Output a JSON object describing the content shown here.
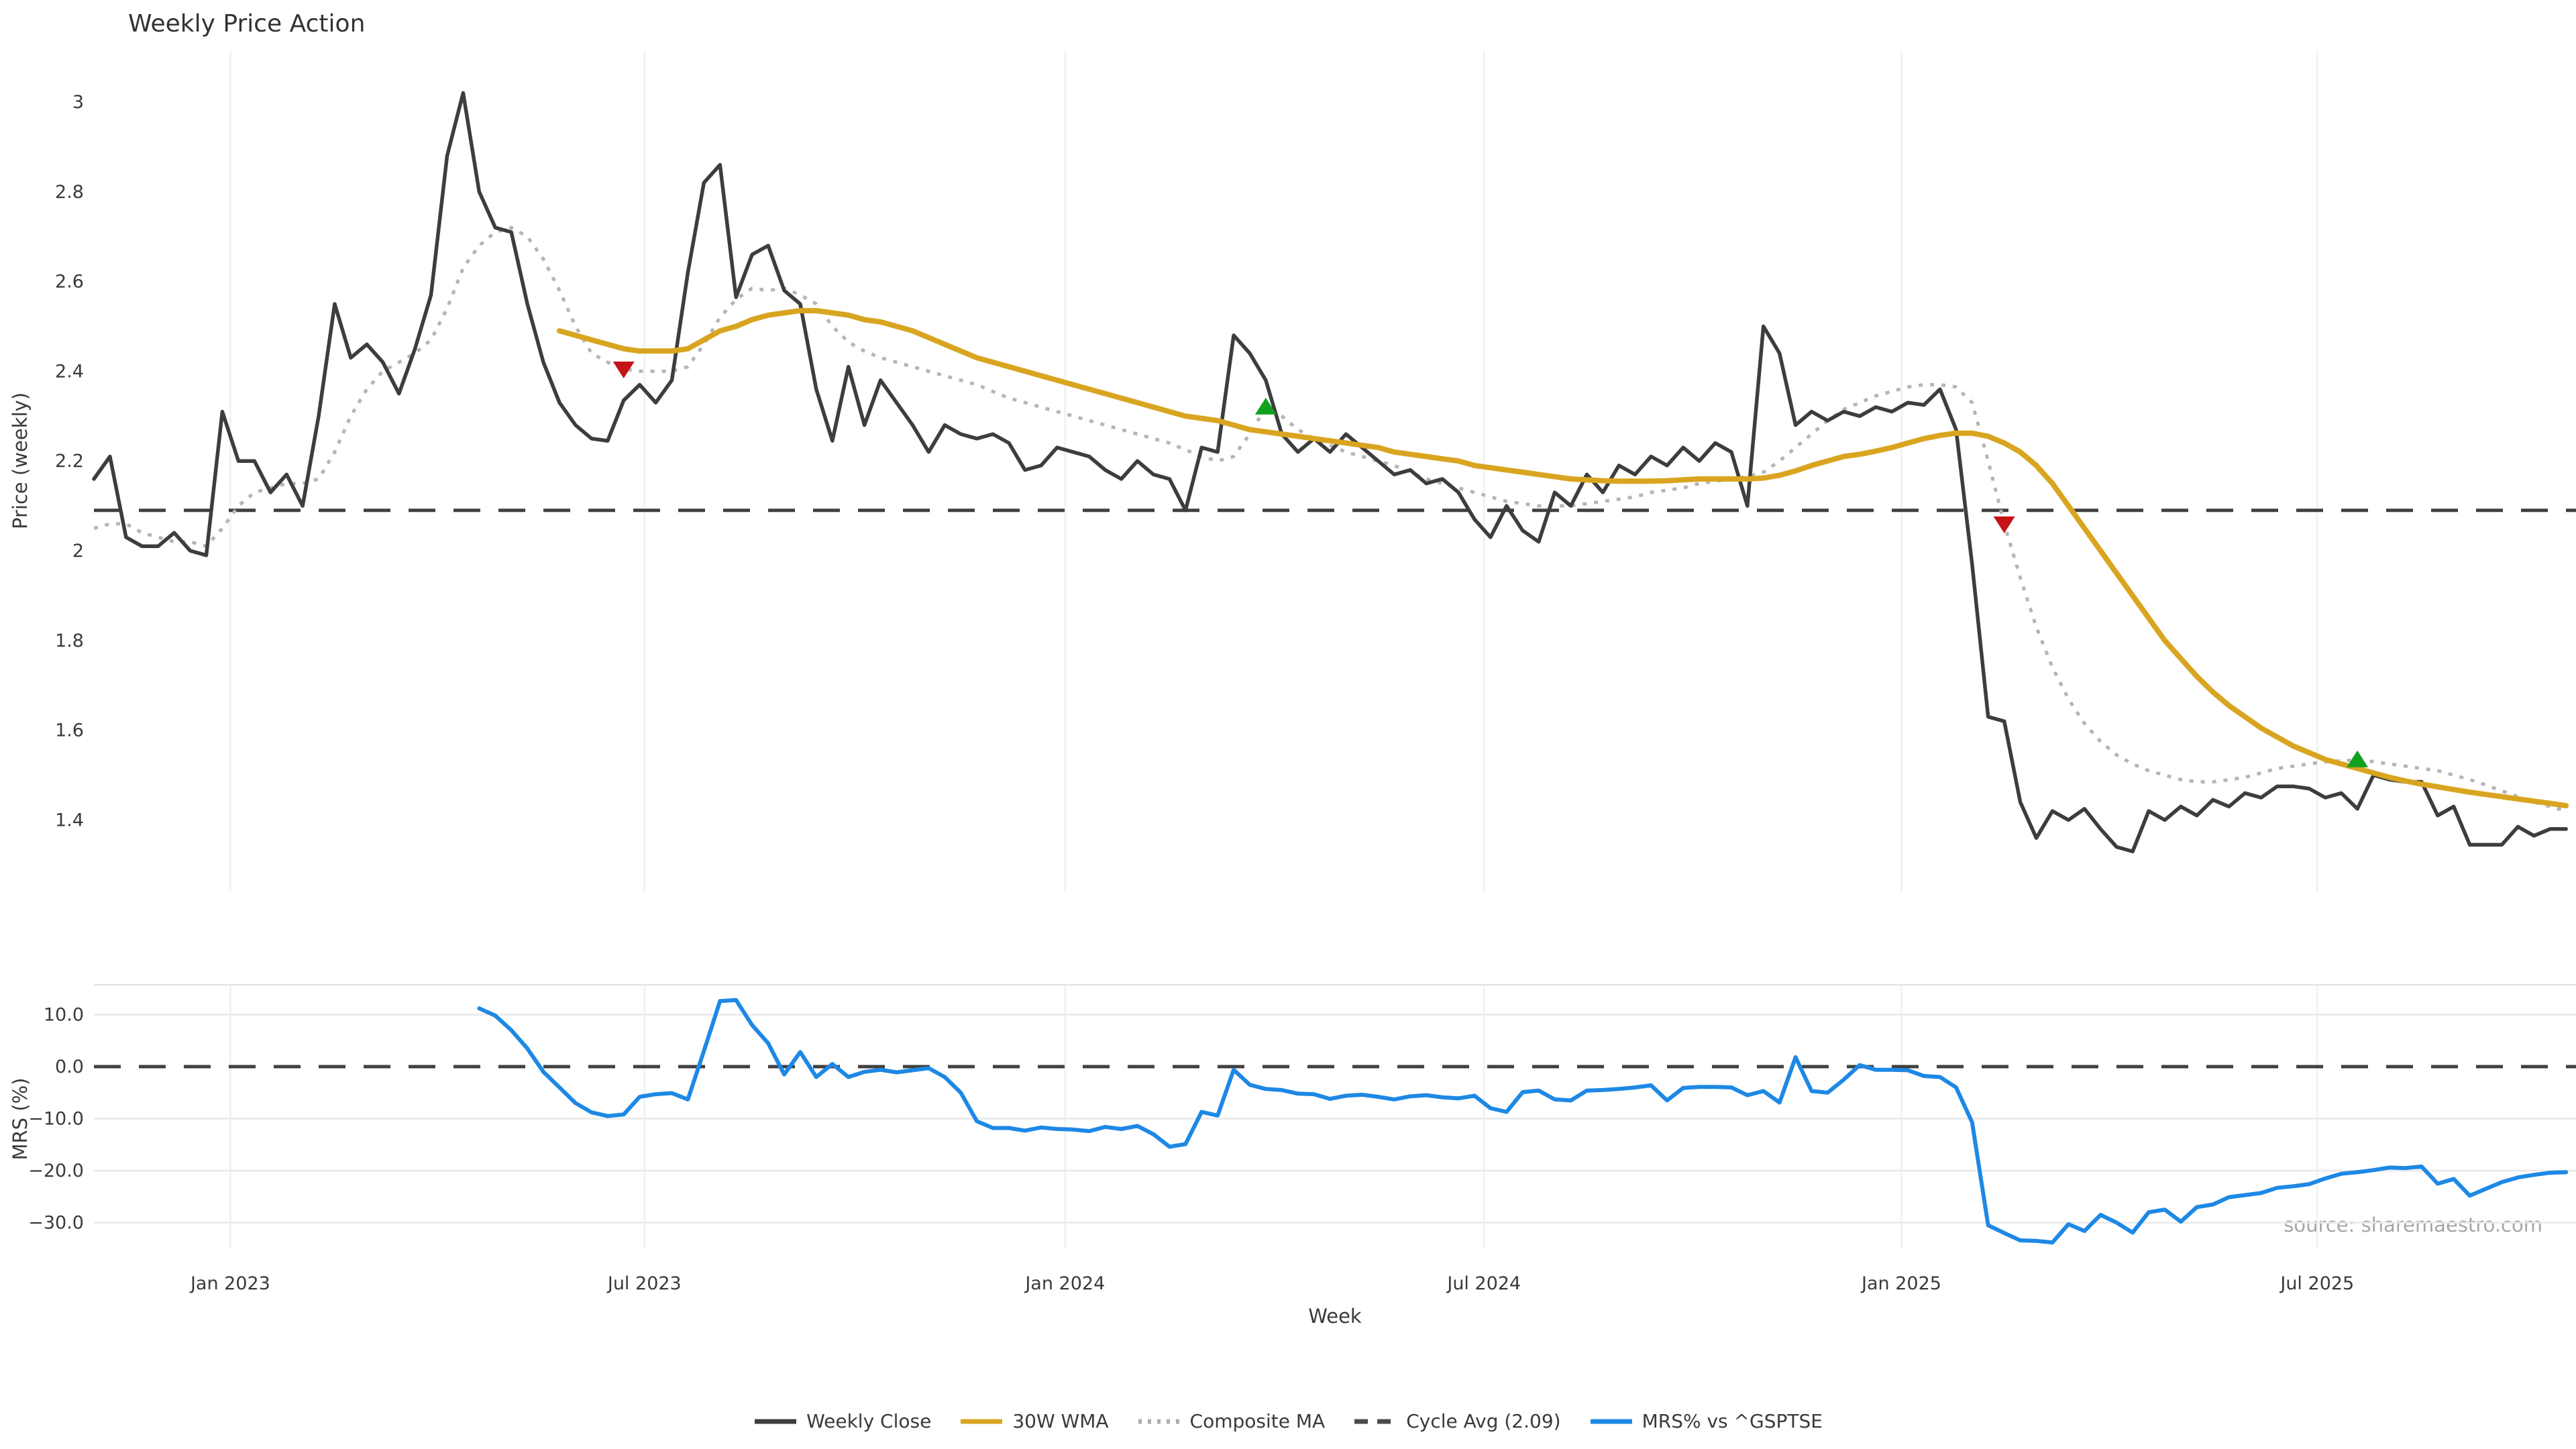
{
  "title": "Weekly Price Action",
  "xlabel": "Week",
  "source": "source: sharemaestro.com",
  "colors": {
    "close": "#3d3d3d",
    "wma": "#d9a521",
    "composite": "#b5b5b5",
    "cycle": "#404040",
    "mrs": "#1e88e5",
    "sell": "#c41217",
    "buy": "#12a01f",
    "grid_v": "#eef1f5",
    "grid_h": "#e9e9e9",
    "panel_border": "#e2e5e8",
    "text": "#3a3a3a",
    "muted": "#a6a6a6"
  },
  "legend": [
    {
      "label": "Weekly Close",
      "color": "#3d3d3d",
      "style": "solid"
    },
    {
      "label": "30W WMA",
      "color": "#d9a521",
      "style": "solid"
    },
    {
      "label": "Composite MA",
      "color": "#adadad",
      "style": "dotted"
    },
    {
      "label": "Cycle Avg (2.09)",
      "color": "#4a4a4a",
      "style": "dashed"
    },
    {
      "label": "MRS% vs ^GSPTSE",
      "color": "#1e88e5",
      "style": "solid"
    }
  ],
  "chart_data": {
    "type": "line",
    "x_unit": "week_index",
    "xlabel": "Week",
    "xticks": [
      {
        "label": "Jan 2023",
        "week": 8.5
      },
      {
        "label": "Jul 2023",
        "week": 34.3
      },
      {
        "label": "Jan 2024",
        "week": 60.5
      },
      {
        "label": "Jul 2024",
        "week": 86.6
      },
      {
        "label": "Jan 2025",
        "week": 112.6
      },
      {
        "label": "Jul 2025",
        "week": 138.5
      }
    ],
    "price_panel": {
      "ylabel": "Price (weekly)",
      "ylim": [
        1.23,
        3.13
      ],
      "grid": "vertical-only",
      "cycle_avg": 2.09,
      "yticks": [
        {
          "value": 3,
          "label": "3"
        },
        {
          "value": 2.8,
          "label": "2.8"
        },
        {
          "value": 2.6,
          "label": "2.6"
        },
        {
          "value": 2.4,
          "label": "2.4"
        },
        {
          "value": 2.2,
          "label": "2.2"
        },
        {
          "value": 2,
          "label": "2"
        },
        {
          "value": 1.8,
          "label": "1.8"
        },
        {
          "value": 1.6,
          "label": "1.6"
        },
        {
          "value": 1.4,
          "label": "1.4"
        }
      ],
      "series": [
        {
          "name": "Weekly Close",
          "start_week": 0,
          "values": [
            2.16,
            2.21,
            2.03,
            2.01,
            2.01,
            2.04,
            2.0,
            1.99,
            2.31,
            2.2,
            2.2,
            2.13,
            2.17,
            2.1,
            2.3,
            2.55,
            2.43,
            2.46,
            2.42,
            2.35,
            2.45,
            2.57,
            2.88,
            3.02,
            2.8,
            2.72,
            2.71,
            2.55,
            2.42,
            2.33,
            2.28,
            2.25,
            2.245,
            2.335,
            2.37,
            2.33,
            2.38,
            2.62,
            2.82,
            2.86,
            2.565,
            2.66,
            2.68,
            2.58,
            2.55,
            2.36,
            2.245,
            2.41,
            2.28,
            2.38,
            2.33,
            2.28,
            2.22,
            2.28,
            2.26,
            2.25,
            2.26,
            2.24,
            2.18,
            2.19,
            2.23,
            2.22,
            2.21,
            2.18,
            2.16,
            2.2,
            2.17,
            2.16,
            2.09,
            2.23,
            2.22,
            2.48,
            2.44,
            2.38,
            2.26,
            2.22,
            2.25,
            2.22,
            2.26,
            2.23,
            2.2,
            2.17,
            2.18,
            2.15,
            2.16,
            2.13,
            2.07,
            2.03,
            2.1,
            2.045,
            2.02,
            2.13,
            2.1,
            2.17,
            2.13,
            2.19,
            2.17,
            2.21,
            2.19,
            2.23,
            2.2,
            2.24,
            2.22,
            2.1,
            2.5,
            2.44,
            2.28,
            2.31,
            2.29,
            2.31,
            2.3,
            2.32,
            2.31,
            2.33,
            2.325,
            2.36,
            2.27,
            1.97,
            1.63,
            1.62,
            1.44,
            1.36,
            1.42,
            1.4,
            1.425,
            1.38,
            1.34,
            1.33,
            1.42,
            1.4,
            1.43,
            1.41,
            1.445,
            1.43,
            1.46,
            1.45,
            1.475,
            1.475,
            1.47,
            1.45,
            1.46,
            1.425,
            1.5,
            1.49,
            1.485,
            1.485,
            1.41,
            1.43,
            1.345,
            1.345,
            1.345,
            1.385,
            1.365,
            1.38,
            1.38
          ]
        },
        {
          "name": "30W WMA",
          "start_week": 29,
          "values": [
            2.49,
            2.48,
            2.47,
            2.46,
            2.45,
            2.445,
            2.445,
            2.445,
            2.45,
            2.47,
            2.49,
            2.5,
            2.515,
            2.525,
            2.53,
            2.535,
            2.535,
            2.53,
            2.525,
            2.515,
            2.51,
            2.5,
            2.49,
            2.475,
            2.46,
            2.445,
            2.43,
            2.42,
            2.41,
            2.4,
            2.39,
            2.38,
            2.37,
            2.36,
            2.35,
            2.34,
            2.33,
            2.32,
            2.31,
            2.3,
            2.295,
            2.29,
            2.28,
            2.27,
            2.265,
            2.26,
            2.255,
            2.25,
            2.245,
            2.24,
            2.235,
            2.23,
            2.22,
            2.215,
            2.21,
            2.205,
            2.2,
            2.19,
            2.185,
            2.18,
            2.175,
            2.17,
            2.165,
            2.16,
            2.158,
            2.156,
            2.155,
            2.155,
            2.155,
            2.156,
            2.158,
            2.16,
            2.16,
            2.16,
            2.16,
            2.162,
            2.168,
            2.178,
            2.19,
            2.2,
            2.21,
            2.215,
            2.222,
            2.23,
            2.24,
            2.25,
            2.257,
            2.262,
            2.262,
            2.255,
            2.24,
            2.22,
            2.19,
            2.15,
            2.1,
            2.05,
            2.0,
            1.95,
            1.9,
            1.85,
            1.8,
            1.76,
            1.72,
            1.685,
            1.655,
            1.63,
            1.605,
            1.585,
            1.565,
            1.55,
            1.535,
            1.525,
            1.515,
            1.505,
            1.495,
            1.487,
            1.48,
            1.474,
            1.468,
            1.462,
            1.457,
            1.452,
            1.447,
            1.442,
            1.437,
            1.432
          ]
        },
        {
          "name": "Composite MA",
          "start_week": 0,
          "values": [
            2.05,
            2.06,
            2.06,
            2.04,
            2.03,
            2.02,
            2.02,
            2.01,
            2.05,
            2.1,
            2.13,
            2.14,
            2.15,
            2.15,
            2.16,
            2.22,
            2.3,
            2.36,
            2.4,
            2.42,
            2.44,
            2.47,
            2.54,
            2.63,
            2.68,
            2.71,
            2.72,
            2.7,
            2.65,
            2.58,
            2.5,
            2.44,
            2.42,
            2.405,
            2.4,
            2.4,
            2.4,
            2.41,
            2.46,
            2.52,
            2.56,
            2.585,
            2.58,
            2.585,
            2.57,
            2.55,
            2.5,
            2.465,
            2.445,
            2.43,
            2.42,
            2.41,
            2.4,
            2.39,
            2.38,
            2.37,
            2.355,
            2.34,
            2.33,
            2.32,
            2.31,
            2.3,
            2.29,
            2.28,
            2.27,
            2.26,
            2.25,
            2.24,
            2.225,
            2.21,
            2.2,
            2.21,
            2.26,
            2.32,
            2.3,
            2.27,
            2.25,
            2.235,
            2.22,
            2.21,
            2.2,
            2.19,
            2.175,
            2.16,
            2.15,
            2.14,
            2.13,
            2.12,
            2.11,
            2.105,
            2.1,
            2.1,
            2.1,
            2.105,
            2.11,
            2.115,
            2.12,
            2.13,
            2.135,
            2.14,
            2.15,
            2.155,
            2.16,
            2.165,
            2.175,
            2.2,
            2.23,
            2.26,
            2.29,
            2.315,
            2.33,
            2.345,
            2.355,
            2.365,
            2.37,
            2.37,
            2.365,
            2.33,
            2.2,
            2.06,
            1.94,
            1.83,
            1.74,
            1.67,
            1.615,
            1.575,
            1.545,
            1.525,
            1.51,
            1.5,
            1.49,
            1.485,
            1.485,
            1.49,
            1.495,
            1.505,
            1.515,
            1.52,
            1.525,
            1.53,
            1.532,
            1.534,
            1.53,
            1.525,
            1.52,
            1.515,
            1.51,
            1.5,
            1.49,
            1.478,
            1.465,
            1.452,
            1.44,
            1.43,
            1.42
          ]
        }
      ],
      "markers": [
        {
          "type": "sell",
          "week": 33,
          "price": 2.405
        },
        {
          "type": "buy",
          "week": 73,
          "price": 2.32
        },
        {
          "type": "sell",
          "week": 119,
          "price": 2.06
        },
        {
          "type": "buy",
          "week": 141,
          "price": 1.534
        }
      ]
    },
    "mrs_panel": {
      "ylabel": "MRS (%)",
      "ylim": [
        -35.5,
        15.7
      ],
      "zero_line": 0,
      "yticks": [
        {
          "value": 10,
          "label": "10.0"
        },
        {
          "value": 0,
          "label": "0.0"
        },
        {
          "value": -10,
          "label": "−10.0"
        },
        {
          "value": -20,
          "label": "−20.0"
        },
        {
          "value": -30,
          "label": "−30.0"
        }
      ],
      "series": [
        {
          "name": "MRS% vs ^GSPTSE",
          "start_week": 24,
          "values": [
            11.2,
            9.8,
            7.0,
            3.5,
            -1.0,
            -4.0,
            -7.0,
            -8.8,
            -9.5,
            -9.2,
            -5.8,
            -5.3,
            -5.1,
            -6.3,
            3.0,
            12.6,
            12.8,
            8.0,
            4.5,
            -1.5,
            2.8,
            -2.0,
            0.5,
            -2.0,
            -1.0,
            -0.6,
            -1.1,
            -0.7,
            -0.3,
            -2.0,
            -5.0,
            -10.5,
            -11.8,
            -11.8,
            -12.3,
            -11.7,
            -12.0,
            -12.1,
            -12.4,
            -11.6,
            -12.0,
            -11.4,
            -13.0,
            -15.4,
            -14.9,
            -8.7,
            -9.4,
            -0.6,
            -3.5,
            -4.3,
            -4.5,
            -5.2,
            -5.3,
            -6.2,
            -5.6,
            -5.4,
            -5.8,
            -6.3,
            -5.7,
            -5.5,
            -5.9,
            -6.1,
            -5.6,
            -8.0,
            -8.7,
            -4.9,
            -4.6,
            -6.3,
            -6.5,
            -4.6,
            -4.5,
            -4.3,
            -4.0,
            -3.6,
            -6.5,
            -4.1,
            -3.9,
            -3.9,
            -4.0,
            -5.5,
            -4.7,
            -6.9,
            1.8,
            -4.7,
            -5.0,
            -2.5,
            0.3,
            -0.6,
            -0.6,
            -0.7,
            -1.8,
            -2.0,
            -4.0,
            -10.7,
            -30.5,
            -32.0,
            -33.4,
            -33.5,
            -33.8,
            -30.3,
            -31.6,
            -28.5,
            -30.0,
            -31.9,
            -28.0,
            -27.5,
            -29.8,
            -27.0,
            -26.5,
            -25.1,
            -24.7,
            -24.3,
            -23.3,
            -23.0,
            -22.6,
            -21.5,
            -20.6,
            -20.3,
            -19.9,
            -19.4,
            -19.5,
            -19.2,
            -22.5,
            -21.6,
            -24.8,
            -23.5,
            -22.2,
            -21.3,
            -20.8,
            -20.4,
            -20.3
          ]
        }
      ]
    }
  }
}
